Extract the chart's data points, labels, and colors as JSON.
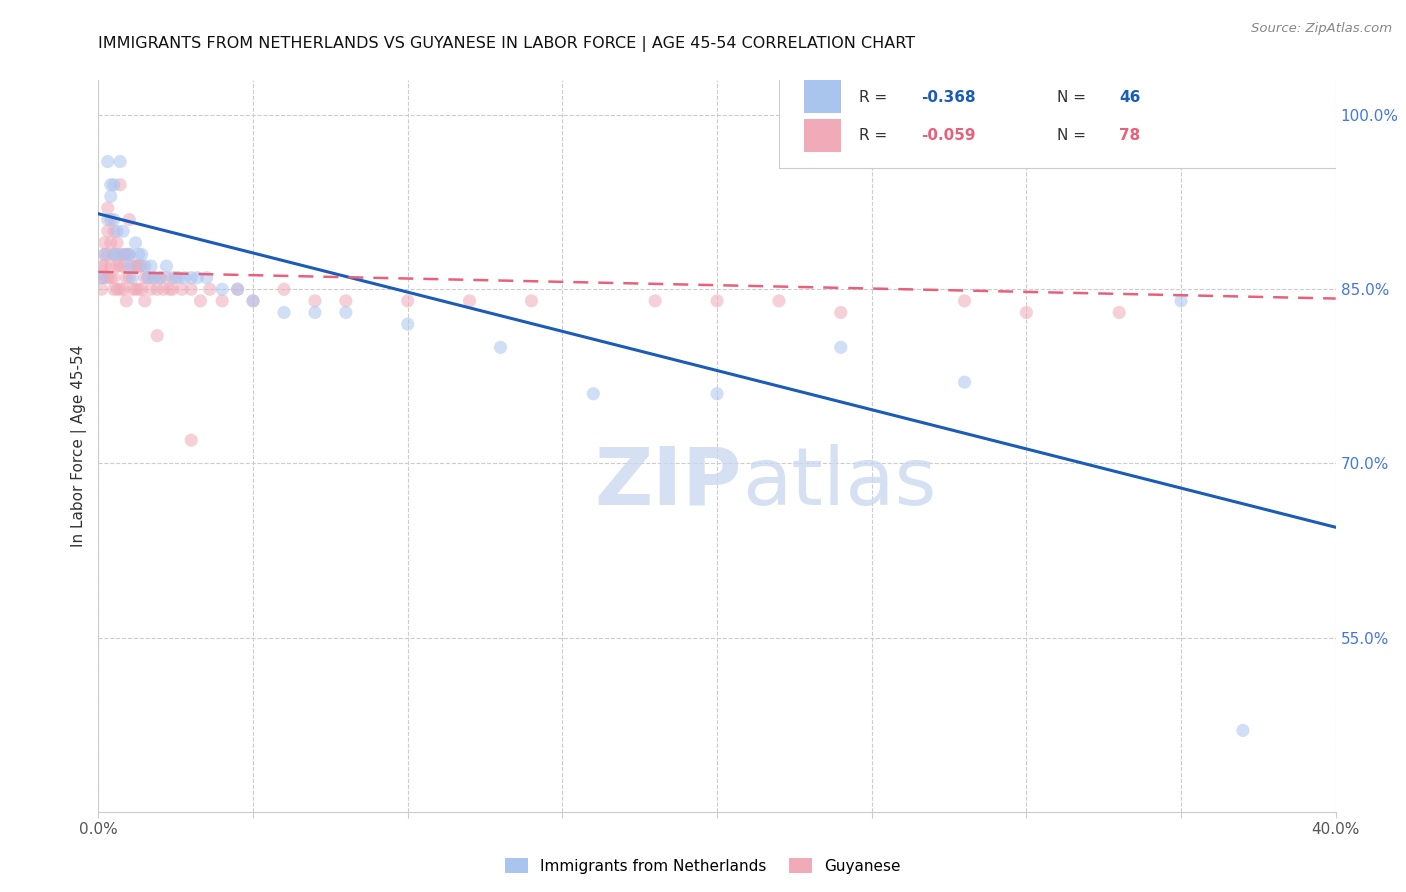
{
  "title": "IMMIGRANTS FROM NETHERLANDS VS GUYANESE IN LABOR FORCE | AGE 45-54 CORRELATION CHART",
  "source": "Source: ZipAtlas.com",
  "ylabel": "In Labor Force | Age 45-54",
  "xlim": [
    0.0,
    0.4
  ],
  "ylim": [
    0.4,
    1.03
  ],
  "xticks": [
    0.0,
    0.05,
    0.1,
    0.15,
    0.2,
    0.25,
    0.3,
    0.35,
    0.4
  ],
  "xticklabels": [
    "0.0%",
    "",
    "",
    "",
    "",
    "",
    "",
    "",
    "40.0%"
  ],
  "yticks_right": [
    1.0,
    0.85,
    0.7,
    0.55
  ],
  "ytick_right_labels": [
    "100.0%",
    "85.0%",
    "70.0%",
    "55.0%"
  ],
  "blue_color": "#aac4f0",
  "pink_color": "#f0aab8",
  "blue_line_color": "#1a5cb8",
  "pink_line_color": "#e8607a",
  "legend_r_blue": "R = ",
  "legend_v_blue": "-0.368",
  "legend_n_blue": "N = ",
  "legend_nv_blue": "46",
  "legend_r_pink": "R = ",
  "legend_v_pink": "-0.059",
  "legend_n_pink": "N = ",
  "legend_nv_pink": "78",
  "legend_label_blue": "Immigrants from Netherlands",
  "legend_label_pink": "Guyanese",
  "watermark_zip": "ZIP",
  "watermark_atlas": "atlas",
  "blue_x": [
    0.001,
    0.002,
    0.003,
    0.003,
    0.004,
    0.004,
    0.005,
    0.005,
    0.005,
    0.006,
    0.006,
    0.007,
    0.008,
    0.009,
    0.01,
    0.01,
    0.011,
    0.012,
    0.013,
    0.014,
    0.015,
    0.016,
    0.017,
    0.018,
    0.02,
    0.022,
    0.024,
    0.026,
    0.028,
    0.03,
    0.032,
    0.035,
    0.04,
    0.045,
    0.05,
    0.06,
    0.07,
    0.08,
    0.1,
    0.13,
    0.16,
    0.2,
    0.24,
    0.28,
    0.35,
    0.37
  ],
  "blue_y": [
    0.86,
    0.88,
    0.96,
    0.91,
    0.94,
    0.93,
    0.91,
    0.94,
    0.88,
    0.9,
    0.88,
    0.96,
    0.9,
    0.88,
    0.88,
    0.87,
    0.86,
    0.89,
    0.88,
    0.88,
    0.87,
    0.86,
    0.87,
    0.86,
    0.86,
    0.87,
    0.86,
    0.86,
    0.86,
    0.86,
    0.86,
    0.86,
    0.85,
    0.85,
    0.84,
    0.83,
    0.83,
    0.83,
    0.82,
    0.8,
    0.76,
    0.76,
    0.8,
    0.77,
    0.84,
    0.47
  ],
  "pink_x": [
    0.001,
    0.001,
    0.001,
    0.002,
    0.002,
    0.002,
    0.002,
    0.003,
    0.003,
    0.003,
    0.003,
    0.004,
    0.004,
    0.004,
    0.004,
    0.005,
    0.005,
    0.005,
    0.005,
    0.006,
    0.006,
    0.006,
    0.007,
    0.007,
    0.007,
    0.008,
    0.008,
    0.008,
    0.009,
    0.009,
    0.009,
    0.01,
    0.01,
    0.011,
    0.011,
    0.012,
    0.012,
    0.013,
    0.013,
    0.014,
    0.014,
    0.015,
    0.015,
    0.016,
    0.017,
    0.018,
    0.019,
    0.02,
    0.021,
    0.022,
    0.023,
    0.024,
    0.025,
    0.027,
    0.03,
    0.033,
    0.036,
    0.04,
    0.045,
    0.05,
    0.06,
    0.07,
    0.08,
    0.1,
    0.12,
    0.14,
    0.18,
    0.2,
    0.22,
    0.24,
    0.28,
    0.3,
    0.33,
    0.007,
    0.01,
    0.013,
    0.019,
    0.03
  ],
  "pink_y": [
    0.87,
    0.86,
    0.85,
    0.89,
    0.88,
    0.87,
    0.86,
    0.92,
    0.9,
    0.88,
    0.86,
    0.91,
    0.89,
    0.87,
    0.86,
    0.9,
    0.88,
    0.86,
    0.85,
    0.89,
    0.87,
    0.85,
    0.88,
    0.87,
    0.85,
    0.88,
    0.87,
    0.85,
    0.88,
    0.86,
    0.84,
    0.88,
    0.86,
    0.87,
    0.85,
    0.87,
    0.85,
    0.87,
    0.85,
    0.87,
    0.85,
    0.86,
    0.84,
    0.86,
    0.85,
    0.86,
    0.85,
    0.86,
    0.85,
    0.86,
    0.85,
    0.85,
    0.86,
    0.85,
    0.85,
    0.84,
    0.85,
    0.84,
    0.85,
    0.84,
    0.85,
    0.84,
    0.84,
    0.84,
    0.84,
    0.84,
    0.84,
    0.84,
    0.84,
    0.83,
    0.84,
    0.83,
    0.83,
    0.94,
    0.91,
    0.87,
    0.81,
    0.72
  ],
  "blue_trend_x": [
    0.0,
    0.4
  ],
  "blue_trend_y": [
    0.915,
    0.645
  ],
  "pink_trend_x": [
    0.0,
    0.4
  ],
  "pink_trend_y": [
    0.865,
    0.842
  ],
  "background_color": "#ffffff",
  "grid_color": "#cccccc",
  "title_color": "#111111",
  "right_axis_color": "#4477dd",
  "marker_size": 10,
  "alpha": 0.55
}
